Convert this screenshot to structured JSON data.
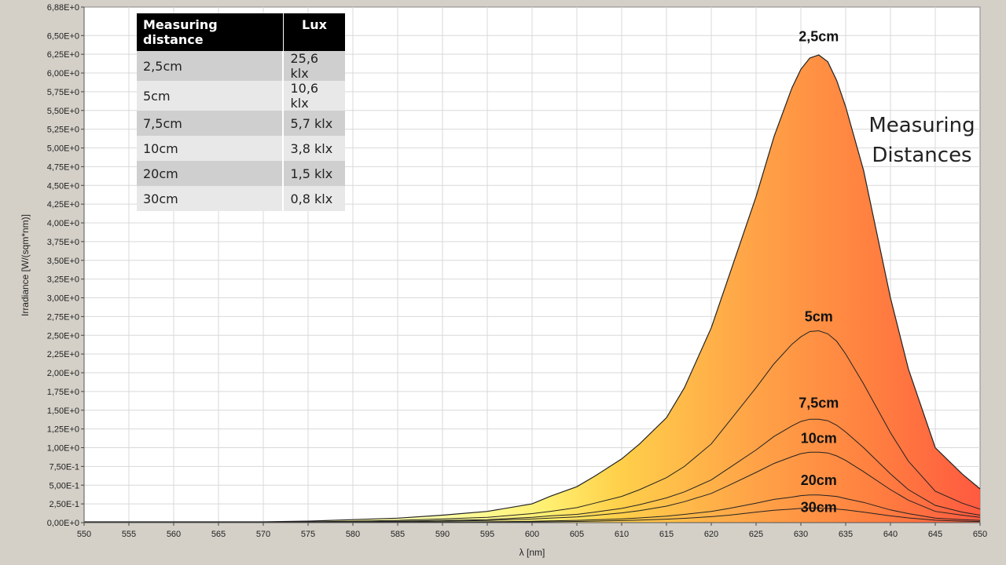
{
  "chart_data": {
    "type": "area",
    "xlabel": "λ [nm]",
    "ylabel": "Irradiance [W/(sqm*nm)]",
    "xlim": [
      550,
      650
    ],
    "ylim": [
      0,
      6.88
    ],
    "grid": true,
    "x_ticks": [
      "550",
      "555",
      "560",
      "565",
      "570",
      "575",
      "580",
      "585",
      "590",
      "595",
      "600",
      "605",
      "610",
      "615",
      "620",
      "625",
      "630",
      "635",
      "640",
      "645",
      "650"
    ],
    "y_ticks": [
      {
        "value": 0.0,
        "label": "0,00E+0"
      },
      {
        "value": 0.25,
        "label": "2,50E-1"
      },
      {
        "value": 0.5,
        "label": "5,00E-1"
      },
      {
        "value": 0.75,
        "label": "7,50E-1"
      },
      {
        "value": 1.0,
        "label": "1,00E+0"
      },
      {
        "value": 1.25,
        "label": "1,25E+0"
      },
      {
        "value": 1.5,
        "label": "1,50E+0"
      },
      {
        "value": 1.75,
        "label": "1,75E+0"
      },
      {
        "value": 2.0,
        "label": "2,00E+0"
      },
      {
        "value": 2.25,
        "label": "2,25E+0"
      },
      {
        "value": 2.5,
        "label": "2,50E+0"
      },
      {
        "value": 2.75,
        "label": "2,75E+0"
      },
      {
        "value": 3.0,
        "label": "3,00E+0"
      },
      {
        "value": 3.25,
        "label": "3,25E+0"
      },
      {
        "value": 3.5,
        "label": "3,50E+0"
      },
      {
        "value": 3.75,
        "label": "3,75E+0"
      },
      {
        "value": 4.0,
        "label": "4,00E+0"
      },
      {
        "value": 4.25,
        "label": "4,25E+0"
      },
      {
        "value": 4.5,
        "label": "4,50E+0"
      },
      {
        "value": 4.75,
        "label": "4,75E+0"
      },
      {
        "value": 5.0,
        "label": "5,00E+0"
      },
      {
        "value": 5.25,
        "label": "5,25E+0"
      },
      {
        "value": 5.5,
        "label": "5,50E+0"
      },
      {
        "value": 5.75,
        "label": "5,75E+0"
      },
      {
        "value": 6.0,
        "label": "6,00E+0"
      },
      {
        "value": 6.25,
        "label": "6,25E+0"
      },
      {
        "value": 6.5,
        "label": "6,50E+0"
      },
      {
        "value": 6.88,
        "label": "6,88E+0"
      }
    ],
    "x": [
      550,
      570,
      575,
      580,
      585,
      590,
      595,
      600,
      602,
      605,
      607,
      610,
      612,
      615,
      617,
      620,
      622,
      625,
      627,
      629,
      630,
      631,
      632,
      633,
      634,
      635,
      637,
      640,
      642,
      645,
      648,
      650
    ],
    "series": [
      {
        "name": "2,5cm",
        "values": [
          0.01,
          0.01,
          0.02,
          0.04,
          0.06,
          0.1,
          0.15,
          0.25,
          0.35,
          0.48,
          0.62,
          0.85,
          1.05,
          1.4,
          1.8,
          2.6,
          3.3,
          4.35,
          5.15,
          5.8,
          6.05,
          6.2,
          6.24,
          6.15,
          5.9,
          5.55,
          4.7,
          3.0,
          2.05,
          1.0,
          0.65,
          0.45
        ]
      },
      {
        "name": "5cm",
        "values": [
          0.005,
          0.008,
          0.01,
          0.02,
          0.03,
          0.05,
          0.07,
          0.12,
          0.15,
          0.2,
          0.26,
          0.35,
          0.44,
          0.6,
          0.75,
          1.05,
          1.35,
          1.8,
          2.12,
          2.38,
          2.48,
          2.55,
          2.56,
          2.52,
          2.42,
          2.25,
          1.85,
          1.2,
          0.82,
          0.42,
          0.26,
          0.18
        ]
      },
      {
        "name": "7,5cm",
        "values": [
          0.003,
          0.005,
          0.007,
          0.012,
          0.018,
          0.03,
          0.04,
          0.07,
          0.09,
          0.11,
          0.14,
          0.19,
          0.24,
          0.33,
          0.41,
          0.57,
          0.73,
          0.97,
          1.15,
          1.29,
          1.35,
          1.38,
          1.38,
          1.36,
          1.3,
          1.21,
          1.0,
          0.65,
          0.44,
          0.23,
          0.14,
          0.1
        ]
      },
      {
        "name": "10cm",
        "values": [
          0.002,
          0.003,
          0.005,
          0.008,
          0.012,
          0.02,
          0.028,
          0.048,
          0.06,
          0.076,
          0.097,
          0.13,
          0.16,
          0.22,
          0.28,
          0.39,
          0.5,
          0.67,
          0.79,
          0.88,
          0.92,
          0.94,
          0.94,
          0.93,
          0.89,
          0.83,
          0.68,
          0.44,
          0.3,
          0.15,
          0.1,
          0.07
        ]
      },
      {
        "name": "20cm",
        "values": [
          0.001,
          0.002,
          0.002,
          0.003,
          0.005,
          0.008,
          0.011,
          0.019,
          0.023,
          0.03,
          0.038,
          0.05,
          0.063,
          0.087,
          0.11,
          0.15,
          0.19,
          0.26,
          0.31,
          0.34,
          0.36,
          0.37,
          0.37,
          0.36,
          0.35,
          0.32,
          0.27,
          0.17,
          0.12,
          0.06,
          0.04,
          0.03
        ]
      },
      {
        "name": "30cm",
        "values": [
          0.0,
          0.001,
          0.001,
          0.002,
          0.003,
          0.004,
          0.006,
          0.01,
          0.012,
          0.016,
          0.02,
          0.027,
          0.034,
          0.046,
          0.058,
          0.08,
          0.1,
          0.14,
          0.165,
          0.18,
          0.19,
          0.195,
          0.195,
          0.19,
          0.18,
          0.17,
          0.14,
          0.09,
          0.063,
          0.032,
          0.02,
          0.015
        ]
      }
    ],
    "series_label_positions": [
      {
        "x": 632,
        "y": 6.34
      },
      {
        "x": 632,
        "y": 2.6
      },
      {
        "x": 632,
        "y": 1.45
      },
      {
        "x": 632,
        "y": 0.98
      },
      {
        "x": 632,
        "y": 0.42
      },
      {
        "x": 632,
        "y": 0.06
      }
    ],
    "annotation_lines": [
      "Measuring",
      "Distances"
    ]
  },
  "table": {
    "headers": [
      "Measuring distance",
      "Lux"
    ],
    "rows": [
      [
        "2,5cm",
        "25,6 klx"
      ],
      [
        "5cm",
        "10,6 klx"
      ],
      [
        "7,5cm",
        "5,7 klx"
      ],
      [
        "10cm",
        "3,8 klx"
      ],
      [
        "20cm",
        "1,5 klx"
      ],
      [
        "30cm",
        "0,8 klx"
      ]
    ]
  }
}
